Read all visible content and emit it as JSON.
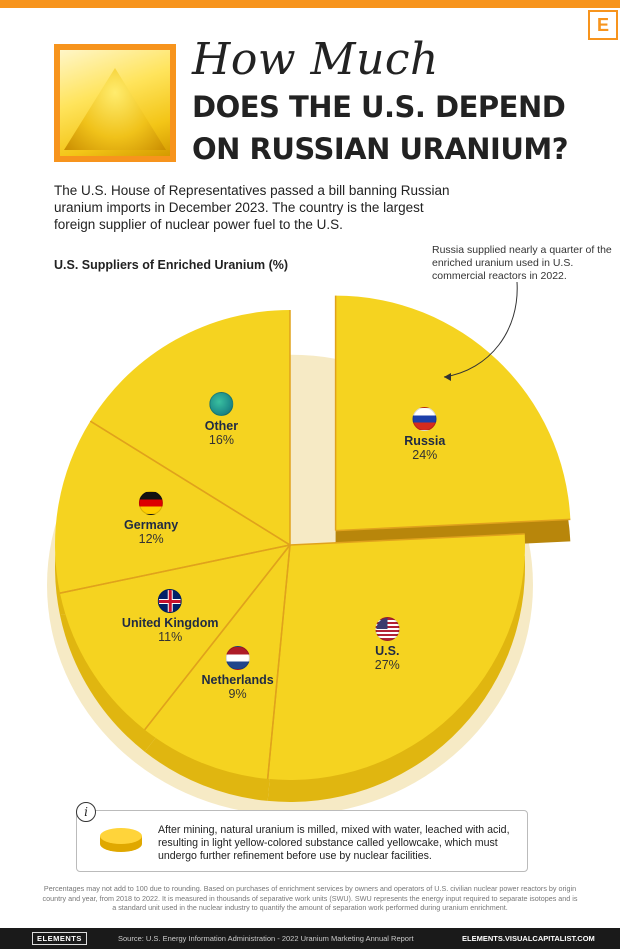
{
  "header": {
    "title_script": "How Much",
    "title_line1": "DOES THE U.S. DEPEND",
    "title_line2": "ON RUSSIAN URANIUM?",
    "brand_letter": "E"
  },
  "intro": "The U.S. House of Representatives passed a bill banning Russian uranium imports in December 2023. The country is the largest foreign supplier of nuclear power fuel to the U.S.",
  "callout": "Russia supplied nearly a quarter of the enriched uranium used in U.S. commercial reactors in 2022.",
  "chart_data": {
    "type": "pie",
    "title": "U.S. Suppliers of Enriched Uranium (%)",
    "unit": "%",
    "slices": [
      {
        "name": "Russia",
        "value": 24,
        "label": "24%",
        "flag_icon": "russia-flag-icon",
        "exploded": true
      },
      {
        "name": "U.S.",
        "value": 27,
        "label": "27%",
        "flag_icon": "us-flag-icon"
      },
      {
        "name": "Netherlands",
        "value": 9,
        "label": "9%",
        "flag_icon": "netherlands-flag-icon"
      },
      {
        "name": "United Kingdom",
        "value": 11,
        "label": "11%",
        "flag_icon": "uk-flag-icon"
      },
      {
        "name": "Germany",
        "value": 12,
        "label": "12%",
        "flag_icon": "germany-flag-icon"
      },
      {
        "name": "Other",
        "value": 16,
        "label": "16%",
        "flag_icon": "globe-icon"
      }
    ],
    "colors": {
      "fill": "#f5d320",
      "side": "#e0b610",
      "line": "#e0a21c"
    }
  },
  "info": "After mining, natural uranium is milled, mixed with water, leached with acid, resulting in light yellow-colored substance called yellowcake, which must undergo further refinement before use by nuclear facilities.",
  "footnote": "Percentages may not add to 100 due to rounding. Based on purchases of enrichment services by owners and operators of U.S. civilian nuclear power reactors by origin country and year, from 2018 to 2022. It is measured in thousands of separative work units (SWU). SWU represents the energy input required to separate isotopes and is a standard unit used in the nuclear industry to quantify the amount of separation work performed during uranium enrichment.",
  "footer": {
    "logo": "ELEMENTS",
    "source": "Source: U.S. Energy Information Administration - 2022 Uranium Marketing Annual Report",
    "url": "ELEMENTS.VISUALCAPITALIST.COM"
  },
  "accent_color": "#f7941d"
}
